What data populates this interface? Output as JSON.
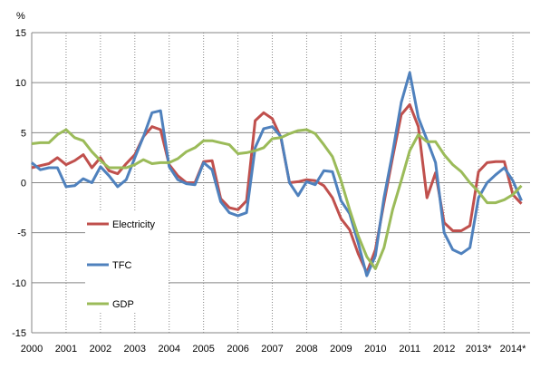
{
  "chart_data": {
    "type": "line",
    "ylabel": "%",
    "ylim": [
      -15,
      15
    ],
    "yticks": [
      -15,
      -10,
      -5,
      0,
      5,
      10,
      15
    ],
    "x_tick_labels": [
      "2000",
      "2001",
      "2002",
      "2003",
      "2004",
      "2005",
      "2006",
      "2007",
      "2008",
      "2009",
      "2010",
      "2011",
      "2012",
      "2013*",
      "2014*"
    ],
    "x_frequency": "quarterly",
    "grid": true,
    "legend": "inside-left",
    "series": [
      {
        "name": "Electricity",
        "color": "#c0504d",
        "values": [
          1.5,
          1.7,
          1.9,
          2.5,
          1.8,
          2.2,
          2.8,
          1.5,
          2.5,
          1.2,
          0.9,
          1.9,
          2.8,
          4.6,
          5.6,
          5.3,
          1.8,
          0.7,
          0.0,
          0.0,
          2.1,
          2.2,
          -1.6,
          -2.5,
          -2.7,
          -1.8,
          6.2,
          7.0,
          6.4,
          4.5,
          0.0,
          0.1,
          0.3,
          0.2,
          -0.3,
          -1.5,
          -3.6,
          -4.7,
          -7.1,
          -9.0,
          -6.7,
          -2.0,
          2.5,
          6.8,
          7.8,
          5.6,
          -1.5,
          1.0,
          -4.0,
          -4.8,
          -4.8,
          -4.3,
          1.1,
          2.0,
          2.1,
          2.1,
          -1.2,
          -2.1
        ]
      },
      {
        "name": "TFC",
        "color": "#4f81bd",
        "values": [
          2.0,
          1.3,
          1.5,
          1.5,
          -0.4,
          -0.3,
          0.4,
          0.0,
          1.6,
          0.7,
          -0.4,
          0.3,
          2.5,
          4.6,
          7.0,
          7.2,
          1.6,
          0.3,
          -0.1,
          -0.2,
          2.0,
          1.3,
          -1.9,
          -3.0,
          -3.3,
          -3.0,
          3.5,
          5.4,
          5.6,
          4.6,
          0.0,
          -1.3,
          0.1,
          -0.2,
          1.2,
          1.1,
          -1.8,
          -3.1,
          -6.0,
          -9.3,
          -7.3,
          -1.5,
          3.0,
          8.0,
          11.0,
          6.5,
          4.3,
          2.0,
          -5.0,
          -6.7,
          -7.1,
          -6.5,
          -1.5,
          0.0,
          0.8,
          1.5,
          0.2,
          -1.8
        ]
      },
      {
        "name": "GDP",
        "color": "#9bbb59",
        "values": [
          3.9,
          4.0,
          4.0,
          4.8,
          5.3,
          4.5,
          4.2,
          3.1,
          2.2,
          1.5,
          1.5,
          1.5,
          1.8,
          2.3,
          1.9,
          2.0,
          2.0,
          2.4,
          3.1,
          3.5,
          4.2,
          4.2,
          4.0,
          3.8,
          2.9,
          3.0,
          3.2,
          3.5,
          4.4,
          4.5,
          4.9,
          5.2,
          5.3,
          4.9,
          3.8,
          2.6,
          0.2,
          -2.7,
          -5.3,
          -7.4,
          -8.6,
          -6.5,
          -2.7,
          0.2,
          3.2,
          4.8,
          4.1,
          4.1,
          2.8,
          1.8,
          1.1,
          0.0,
          -0.9,
          -2.0,
          -2.0,
          -1.7,
          -1.2,
          -0.3
        ]
      }
    ]
  }
}
